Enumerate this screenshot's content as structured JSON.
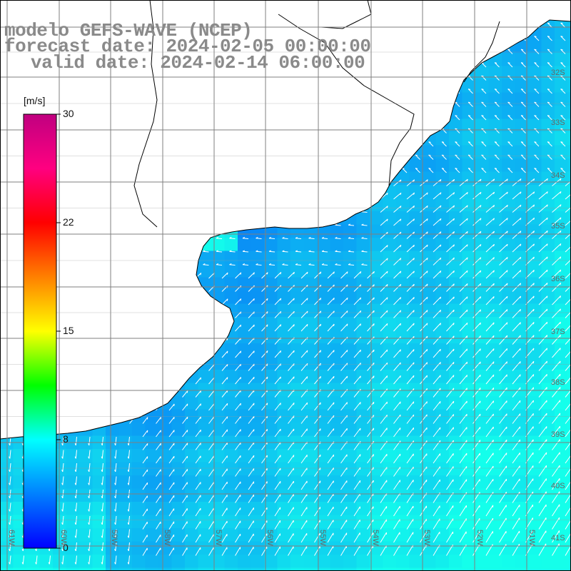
{
  "title": {
    "line1": "modelo GEFS-WAVE (NCEP)",
    "line2": "forecast date: 2024-02-05 00:00:00",
    "line3": "valid date: 2024-02-14 06:00:00"
  },
  "colorbar": {
    "unit": "[m/s]",
    "ticks": [
      {
        "label": "30",
        "value": 30
      },
      {
        "label": "22",
        "value": 22
      },
      {
        "label": "15",
        "value": 15
      },
      {
        "label": "8",
        "value": 8
      },
      {
        "label": "0",
        "value": 0
      }
    ],
    "colors": [
      "#0000ff",
      "#0080ff",
      "#00ffff",
      "#00ff00",
      "#ffff00",
      "#ff8000",
      "#ff0000",
      "#ff0080",
      "#c00080"
    ]
  },
  "lat_labels": [
    "32S",
    "33S",
    "34S",
    "35S",
    "36S",
    "37S",
    "38S",
    "39S",
    "40S",
    "41S"
  ],
  "lon_labels": [
    "61W",
    "60W",
    "59W",
    "58W",
    "57W",
    "56W",
    "55W",
    "54W",
    "53W",
    "52W",
    "51W"
  ],
  "colors": {
    "grid": "#7f7f7f",
    "coast": "#000000",
    "land": "#ffffff",
    "title": "#8a8a8a"
  }
}
